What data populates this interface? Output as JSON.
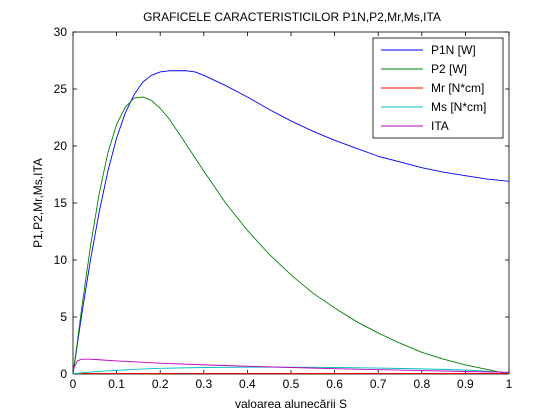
{
  "chart_data": {
    "type": "line",
    "title": "GRAFICELE CARACTERISTICILOR P1N,P2,Mr,Ms,ITA",
    "xlabel": "valoarea alunecării S",
    "ylabel": "P1,P2,Mr,Ms,ITA",
    "xlim": [
      0,
      1
    ],
    "ylim": [
      0,
      30
    ],
    "xticks": [
      0,
      0.1,
      0.2,
      0.3,
      0.4,
      0.5,
      0.6,
      0.7,
      0.8,
      0.9,
      1
    ],
    "xtick_labels": [
      "0",
      "0.1",
      "0.2",
      "0.3",
      "0.4",
      "0.5",
      "0.6",
      "0.7",
      "0.8",
      "0.9",
      "1"
    ],
    "yticks": [
      0,
      5,
      10,
      15,
      20,
      25,
      30
    ],
    "ytick_labels": [
      "0",
      "5",
      "10",
      "15",
      "20",
      "25",
      "30"
    ],
    "grid": false,
    "legend_position": "top-right",
    "series": [
      {
        "name": "P1N [W]",
        "color": "#0000ff",
        "x": [
          0,
          0.01,
          0.02,
          0.04,
          0.06,
          0.08,
          0.1,
          0.12,
          0.14,
          0.16,
          0.18,
          0.2,
          0.22,
          0.24,
          0.25,
          0.26,
          0.28,
          0.3,
          0.35,
          0.4,
          0.45,
          0.5,
          0.55,
          0.6,
          0.65,
          0.7,
          0.75,
          0.8,
          0.85,
          0.9,
          0.95,
          1.0
        ],
        "y": [
          0,
          2.6,
          5.2,
          10.0,
          14.2,
          17.8,
          20.7,
          22.9,
          24.5,
          25.6,
          26.2,
          26.5,
          26.6,
          26.6,
          26.6,
          26.6,
          26.5,
          26.2,
          25.3,
          24.3,
          23.2,
          22.2,
          21.3,
          20.5,
          19.8,
          19.1,
          18.6,
          18.1,
          17.7,
          17.4,
          17.1,
          16.9
        ]
      },
      {
        "name": "P2 [W]",
        "color": "#008000",
        "x": [
          0,
          0.01,
          0.02,
          0.04,
          0.06,
          0.08,
          0.1,
          0.12,
          0.14,
          0.16,
          0.18,
          0.2,
          0.22,
          0.25,
          0.3,
          0.35,
          0.4,
          0.45,
          0.5,
          0.55,
          0.6,
          0.65,
          0.7,
          0.75,
          0.8,
          0.85,
          0.9,
          0.95,
          1.0
        ],
        "y": [
          0,
          2.8,
          5.8,
          11.2,
          15.8,
          19.4,
          21.9,
          23.4,
          24.2,
          24.3,
          24.0,
          23.3,
          22.4,
          20.7,
          17.8,
          15.0,
          12.6,
          10.5,
          8.7,
          7.1,
          5.8,
          4.6,
          3.6,
          2.7,
          1.9,
          1.3,
          0.8,
          0.4,
          0.0
        ]
      },
      {
        "name": "Mr [N*cm]",
        "color": "#ff0000",
        "x": [
          0,
          0.1,
          0.2,
          0.3,
          0.4,
          0.5,
          0.6,
          0.7,
          0.8,
          0.9,
          1.0
        ],
        "y": [
          0.05,
          0.05,
          0.05,
          0.05,
          0.05,
          0.05,
          0.05,
          0.05,
          0.05,
          0.05,
          0.05
        ]
      },
      {
        "name": "Ms [N*cm]",
        "color": "#00bfbf",
        "x": [
          0,
          0.02,
          0.05,
          0.1,
          0.15,
          0.2,
          0.3,
          0.4,
          0.5,
          0.6,
          0.7,
          0.8,
          0.9,
          0.95,
          1.0
        ],
        "y": [
          0,
          0.1,
          0.2,
          0.32,
          0.42,
          0.5,
          0.57,
          0.6,
          0.6,
          0.57,
          0.52,
          0.45,
          0.35,
          0.25,
          0.1
        ]
      },
      {
        "name": "ITA",
        "color": "#bf00bf",
        "x": [
          0,
          0.01,
          0.02,
          0.04,
          0.06,
          0.1,
          0.2,
          0.3,
          0.4,
          0.5,
          0.6,
          0.7,
          0.8,
          0.9,
          1.0
        ],
        "y": [
          0.4,
          1.15,
          1.3,
          1.3,
          1.25,
          1.15,
          0.95,
          0.8,
          0.68,
          0.57,
          0.47,
          0.38,
          0.3,
          0.22,
          0.15
        ]
      }
    ]
  }
}
